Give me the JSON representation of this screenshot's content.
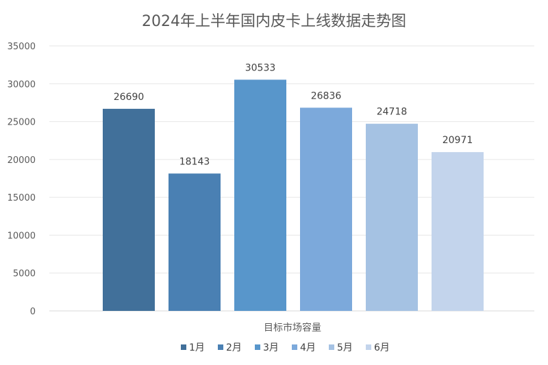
{
  "chart_data": {
    "type": "bar",
    "title": "2024年上半年国内皮卡上线数据走势图",
    "xlabel": "目标市场容量",
    "ylabel": "",
    "ylim": [
      0,
      35000
    ],
    "yticks": [
      0,
      5000,
      10000,
      15000,
      20000,
      25000,
      30000,
      35000
    ],
    "grid": true,
    "legend_position": "bottom",
    "categories": [
      "目标市场容量"
    ],
    "series": [
      {
        "name": "1月",
        "values": [
          26690
        ],
        "color": "#41709a"
      },
      {
        "name": "2月",
        "values": [
          18143
        ],
        "color": "#4a80b3"
      },
      {
        "name": "3月",
        "values": [
          30533
        ],
        "color": "#5896cb"
      },
      {
        "name": "4月",
        "values": [
          26836
        ],
        "color": "#7ca9db"
      },
      {
        "name": "5月",
        "values": [
          24718
        ],
        "color": "#a5c2e3"
      },
      {
        "name": "6月",
        "values": [
          20971
        ],
        "color": "#c3d4ec"
      }
    ]
  }
}
